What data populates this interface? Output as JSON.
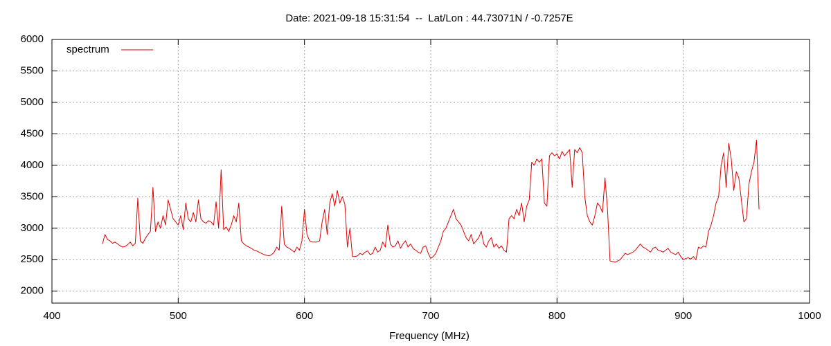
{
  "chart_data": {
    "type": "line",
    "title": "Date: 2021-09-18 15:31:54  --  Lat/Lon : 44.73071N / -0.7257E",
    "xlabel": "Frequency (MHz)",
    "xlim": [
      400,
      1000
    ],
    "xticks": [
      400,
      500,
      600,
      700,
      800,
      900,
      1000
    ],
    "ylim": [
      1810,
      6000
    ],
    "yticks": [
      2000,
      2500,
      3000,
      3500,
      4000,
      4500,
      5000,
      5500,
      6000
    ],
    "grid": true,
    "legend": "top-left",
    "x": [
      440,
      442,
      444,
      446,
      448,
      450,
      452,
      454,
      456,
      458,
      460,
      462,
      464,
      466,
      468,
      470,
      472,
      474,
      476,
      478,
      480,
      482,
      484,
      486,
      488,
      490,
      492,
      494,
      496,
      498,
      500,
      502,
      504,
      506,
      508,
      510,
      512,
      514,
      516,
      518,
      520,
      522,
      524,
      526,
      528,
      530,
      532,
      534,
      536,
      538,
      540,
      542,
      544,
      546,
      548,
      550,
      552,
      554,
      556,
      558,
      560,
      562,
      564,
      566,
      568,
      570,
      572,
      574,
      576,
      578,
      580,
      582,
      584,
      586,
      588,
      590,
      592,
      594,
      596,
      598,
      600,
      602,
      604,
      606,
      608,
      610,
      612,
      614,
      616,
      618,
      620,
      622,
      624,
      626,
      628,
      630,
      632,
      634,
      636,
      638,
      640,
      642,
      644,
      646,
      648,
      650,
      652,
      654,
      656,
      658,
      660,
      662,
      664,
      666,
      668,
      670,
      672,
      674,
      676,
      678,
      680,
      682,
      684,
      686,
      688,
      690,
      692,
      694,
      696,
      698,
      700,
      702,
      704,
      706,
      708,
      710,
      712,
      714,
      716,
      718,
      720,
      722,
      724,
      726,
      728,
      730,
      732,
      734,
      736,
      738,
      740,
      742,
      744,
      746,
      748,
      750,
      752,
      754,
      756,
      758,
      760,
      762,
      764,
      766,
      768,
      770,
      772,
      774,
      776,
      778,
      780,
      782,
      784,
      786,
      788,
      790,
      792,
      794,
      796,
      798,
      800,
      802,
      804,
      806,
      808,
      810,
      812,
      814,
      816,
      818,
      820,
      822,
      824,
      826,
      828,
      830,
      832,
      834,
      836,
      838,
      840,
      842,
      844,
      846,
      848,
      850,
      852,
      854,
      856,
      858,
      860,
      862,
      864,
      866,
      868,
      870,
      872,
      874,
      876,
      878,
      880,
      882,
      884,
      886,
      888,
      890,
      892,
      894,
      896,
      898,
      900,
      902,
      904,
      906,
      908,
      910,
      912,
      914,
      916,
      918,
      920,
      922,
      924,
      926,
      928,
      930,
      932,
      934,
      936,
      938,
      940,
      942,
      944,
      946,
      948,
      950,
      952,
      954,
      956,
      958,
      960
    ],
    "series": [
      {
        "name": "spectrum",
        "color": "#e00000",
        "values": [
          2750,
          2900,
          2820,
          2800,
          2760,
          2780,
          2750,
          2720,
          2700,
          2710,
          2740,
          2780,
          2720,
          2760,
          3480,
          2800,
          2760,
          2840,
          2900,
          2950,
          3650,
          2950,
          3100,
          3000,
          3200,
          3050,
          3450,
          3300,
          3150,
          3100,
          3050,
          3200,
          2980,
          3400,
          3150,
          3100,
          3250,
          3100,
          3450,
          3150,
          3100,
          3080,
          3120,
          3100,
          3050,
          3420,
          3000,
          3930,
          2980,
          3020,
          2950,
          3050,
          3200,
          3100,
          3400,
          2800,
          2750,
          2720,
          2700,
          2680,
          2650,
          2640,
          2620,
          2600,
          2580,
          2570,
          2560,
          2580,
          2620,
          2700,
          2650,
          3350,
          2750,
          2700,
          2680,
          2650,
          2620,
          2700,
          2650,
          2800,
          3300,
          2900,
          2800,
          2780,
          2780,
          2780,
          2800,
          3100,
          3300,
          2900,
          3400,
          3550,
          3350,
          3600,
          3400,
          3500,
          3380,
          2700,
          3000,
          2550,
          2550,
          2560,
          2600,
          2580,
          2620,
          2640,
          2580,
          2600,
          2700,
          2620,
          2650,
          2780,
          2700,
          3050,
          2750,
          2700,
          2720,
          2800,
          2680,
          2750,
          2800,
          2700,
          2750,
          2680,
          2650,
          2620,
          2600,
          2700,
          2720,
          2600,
          2520,
          2550,
          2600,
          2700,
          2800,
          2950,
          3000,
          3100,
          3200,
          3300,
          3150,
          3100,
          3050,
          2950,
          2850,
          2800,
          2900,
          2750,
          2800,
          2850,
          2950,
          2750,
          2700,
          2800,
          2850,
          2700,
          2750,
          2680,
          2720,
          2650,
          2620,
          3150,
          3200,
          3150,
          3300,
          3200,
          3400,
          3100,
          3350,
          3450,
          4050,
          4000,
          4100,
          4050,
          4100,
          3400,
          3350,
          4150,
          4200,
          4150,
          4180,
          4100,
          4220,
          4150,
          4200,
          4250,
          3650,
          4250,
          4200,
          4280,
          4200,
          3500,
          3200,
          3100,
          3050,
          3200,
          3400,
          3350,
          3250,
          3800,
          3300,
          2480,
          2470,
          2460,
          2480,
          2500,
          2550,
          2600,
          2580,
          2600,
          2620,
          2650,
          2700,
          2750,
          2700,
          2680,
          2650,
          2620,
          2680,
          2700,
          2650,
          2640,
          2620,
          2650,
          2680,
          2620,
          2600,
          2580,
          2620,
          2550,
          2500,
          2520,
          2530,
          2510,
          2550,
          2500,
          2700,
          2680,
          2720,
          2700,
          2950,
          3050,
          3200,
          3400,
          3500,
          4000,
          4200,
          3650,
          4350,
          4100,
          3600,
          3900,
          3800,
          3450,
          3100,
          3150,
          3700,
          3900,
          4050,
          4400,
          3300
        ]
      }
    ]
  }
}
